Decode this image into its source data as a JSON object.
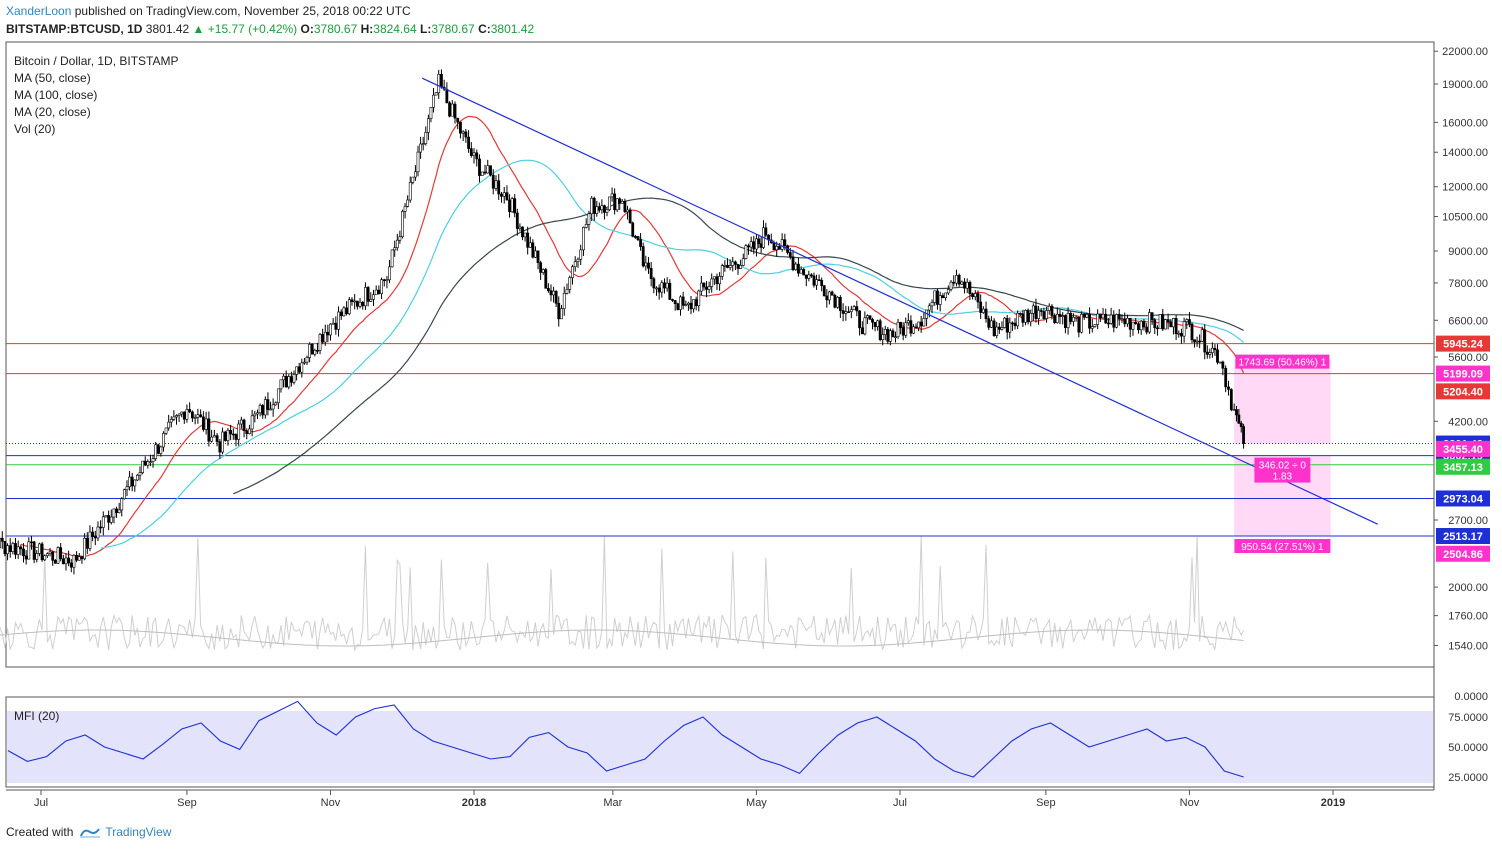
{
  "header": {
    "author": "XanderLoon",
    "published_text": "published on TradingView.com, November 25, 2018 00:22 UTC",
    "symbol": "BITSTAMP:BTCUSD, 1D",
    "last": "3801.42",
    "change": "+15.77 (+0.42%)",
    "o_label": "O:",
    "o_value": "3780.67",
    "h_label": "H:",
    "h_value": "3824.64",
    "l_label": "L:",
    "l_value": "3780.67",
    "c_label": "C:",
    "c_value": "3801.42"
  },
  "legend": {
    "main": "Bitcoin / Dollar, 1D, BITSTAMP",
    "ma50": "MA (50, close)",
    "ma100": "MA (100, close)",
    "ma20": "MA (20, close)",
    "vol": "Vol (20)"
  },
  "mfi": {
    "title": "MFI (20)",
    "ticks": [
      "75.0000",
      "50.0000",
      "25.0000",
      "0.0000"
    ]
  },
  "footer": {
    "created": "Created with",
    "brand": "TradingView",
    "icon": "tradingview-logo-icon"
  },
  "colors": {
    "candle": "#000000",
    "ma20": "#e53935",
    "ma50": "#4dd0e1",
    "ma100": "#37474f",
    "trendline": "#1f2fd6",
    "red_level": "#e53935",
    "blue_level": "#1f2fd6",
    "green_level": "#2ecc40",
    "range_fill": "#ffd9f5",
    "mfi_band": "#e3e3fb",
    "mfi_line": "#1f2fd6",
    "volume": "#cfcfcf"
  },
  "chart_data": {
    "type": "candlestick",
    "title": "Bitcoin / Dollar, 1D, BITSTAMP",
    "xlabel": "",
    "ylabel": "",
    "y_scale": "log",
    "y_ticks": [
      "22000.00",
      "19000.00",
      "16000.00",
      "14000.00",
      "12000.00",
      "10500.00",
      "9000.00",
      "7800.00",
      "6600.00",
      "5600.00",
      "4200.00",
      "2700.00",
      "2000.00",
      "1760.00",
      "1540.00"
    ],
    "x_ticks": [
      "Jul",
      "Sep",
      "Nov",
      "2018",
      "Mar",
      "May",
      "Jul",
      "Sep",
      "Nov",
      "2019"
    ],
    "price_series": {
      "name": "BTCUSD",
      "dates": [
        "2017-06",
        "2017-07-15",
        "2017-08",
        "2017-09-01",
        "2017-09-15",
        "2017-10",
        "2017-11",
        "2017-11-25",
        "2017-12-17",
        "2018-01-01",
        "2018-01-15",
        "2018-02-06",
        "2018-02-20",
        "2018-03-05",
        "2018-03-15",
        "2018-04-01",
        "2018-04-12",
        "2018-05-01",
        "2018-05-05",
        "2018-05-20",
        "2018-06-01",
        "2018-06-15",
        "2018-06-28",
        "2018-07-10",
        "2018-07-25",
        "2018-08-10",
        "2018-08-30",
        "2018-09-15",
        "2018-10-01",
        "2018-10-15",
        "2018-11-01",
        "2018-11-14",
        "2018-11-20",
        "2018-11-24"
      ],
      "close": [
        2500,
        2250,
        2850,
        4500,
        3800,
        4300,
        6500,
        8000,
        19000,
        13500,
        11500,
        6900,
        11000,
        11400,
        8200,
        6900,
        7900,
        9200,
        9800,
        8300,
        7500,
        6500,
        6200,
        6700,
        8200,
        6300,
        7000,
        6500,
        6600,
        6550,
        6400,
        5600,
        4400,
        3801
      ]
    },
    "moving_averages": [
      {
        "name": "MA (20, close)",
        "end": "5200"
      },
      {
        "name": "MA (50, close)",
        "end": "6100"
      },
      {
        "name": "MA (100, close)",
        "end": "6350"
      }
    ],
    "horizontal_levels": [
      {
        "label": "5945.24",
        "color": "red"
      },
      {
        "label": "5199.09",
        "color": "red"
      },
      {
        "label": "3602.19",
        "color": "blue"
      },
      {
        "label": "3457.13",
        "color": "green"
      },
      {
        "label": "2973.04",
        "color": "blue"
      },
      {
        "label": "2513.17",
        "color": "blue"
      }
    ],
    "price_labels": [
      {
        "text": "5945.24",
        "bg": "#e53935"
      },
      {
        "text": "5199.09",
        "bg": "#ff33cc"
      },
      {
        "text": "5204.40",
        "bg": "#e53935"
      },
      {
        "text": "3801.42",
        "bg": "#1f2fd6"
      },
      {
        "text": "3602.19",
        "bg": "#1f2fd6"
      },
      {
        "text": "3455.40",
        "bg": "#ff33cc"
      },
      {
        "text": "3457.13",
        "bg": "#2ecc40"
      },
      {
        "text": "2973.04",
        "bg": "#1f2fd6"
      },
      {
        "text": "2513.17",
        "bg": "#1f2fd6"
      },
      {
        "text": "2504.86",
        "bg": "#ff33cc"
      }
    ],
    "annotations": [
      {
        "text": "1743.69 (50.46%) 1"
      },
      {
        "text": "346.02 ÷ 0"
      },
      {
        "text": "1.83"
      },
      {
        "text": "950.54 (27.51%) 1"
      }
    ],
    "trendline": {
      "from": [
        "2017-12-10",
        19500
      ],
      "to": [
        "2019-01-20",
        2650
      ]
    },
    "mfi": [
      47,
      38,
      42,
      55,
      60,
      50,
      45,
      40,
      52,
      65,
      70,
      55,
      48,
      72,
      80,
      88,
      70,
      60,
      75,
      82,
      85,
      65,
      55,
      50,
      45,
      40,
      42,
      58,
      62,
      50,
      45,
      30,
      35,
      40,
      55,
      68,
      75,
      60,
      50,
      40,
      35,
      28,
      45,
      60,
      70,
      75,
      65,
      55,
      40,
      30,
      25,
      40,
      55,
      65,
      70,
      60,
      50,
      55,
      60,
      65,
      55,
      58,
      50,
      30,
      25
    ]
  }
}
